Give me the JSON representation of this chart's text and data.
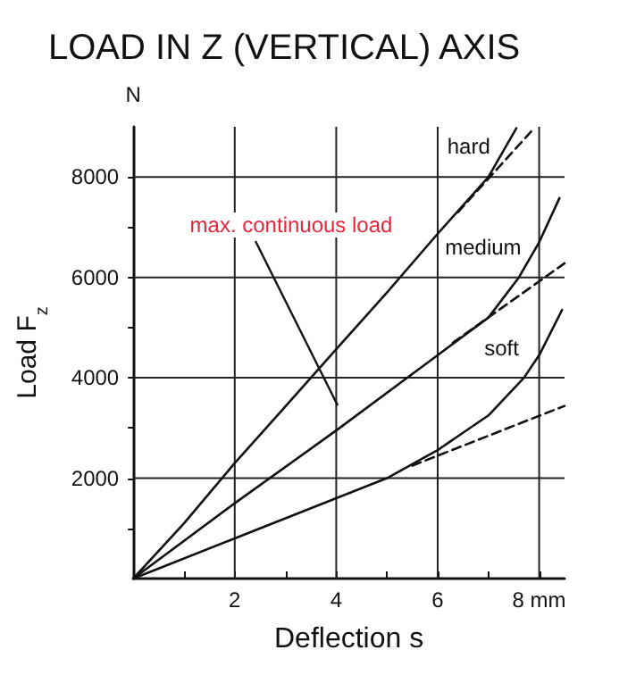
{
  "chart_data": {
    "type": "line",
    "title": "LOAD IN Z (VERTICAL) AXIS",
    "xlabel": "Deflection s",
    "ylabel": "Load F$_{z}$",
    "xlim": [
      0,
      8.5
    ],
    "ylim": [
      0,
      9000
    ],
    "xticks": [
      {
        "value": 1,
        "label": null
      },
      2,
      {
        "value": 3,
        "label": null
      },
      4,
      {
        "value": 5,
        "label": null
      },
      6,
      {
        "value": 7,
        "label": null
      },
      {
        "value": 8,
        "label": "8 mm"
      }
    ],
    "yticks": [
      {
        "value": 1000,
        "label": null
      },
      2000,
      {
        "value": 3000,
        "label": null
      },
      4000,
      {
        "value": 5000,
        "label": null
      },
      6000,
      {
        "value": 7000,
        "label": null
      },
      8000
    ],
    "grid": true,
    "legend": false,
    "marker": "none",
    "series": [
      {
        "name": "hard",
        "color": "#111111",
        "line_style": "solid",
        "x": [
          0,
          1,
          2,
          3,
          4,
          5,
          6,
          7,
          7.55
        ],
        "values": [
          0,
          1100,
          2300,
          3430,
          4570,
          5700,
          6870,
          8000,
          8970
        ]
      },
      {
        "name": "medium",
        "color": "#111111",
        "line_style": "solid",
        "x": [
          0,
          2,
          4,
          6,
          7,
          7.6,
          8,
          8.4
        ],
        "values": [
          0,
          1500,
          2950,
          4450,
          5200,
          6000,
          6700,
          7580
        ]
      },
      {
        "name": "soft",
        "color": "#111111",
        "line_style": "solid",
        "x": [
          0,
          2,
          4,
          5,
          6,
          7,
          7.7,
          8,
          8.45
        ],
        "values": [
          0,
          800,
          1600,
          2000,
          2560,
          3250,
          4000,
          4450,
          5350
        ]
      },
      {
        "color": "#111111",
        "line_style": "dashed",
        "x": [
          6.4,
          7.9
        ],
        "values": [
          7300,
          8970
        ]
      },
      {
        "color": "#111111",
        "line_style": "dashed",
        "x": [
          6.3,
          8.5
        ],
        "values": [
          4700,
          6280
        ]
      },
      {
        "color": "#111111",
        "line_style": "dashed",
        "x": [
          5.5,
          8.5
        ],
        "values": [
          2250,
          3440
        ]
      }
    ],
    "annotations": [
      "max. continuous load",
      "N"
    ]
  }
}
